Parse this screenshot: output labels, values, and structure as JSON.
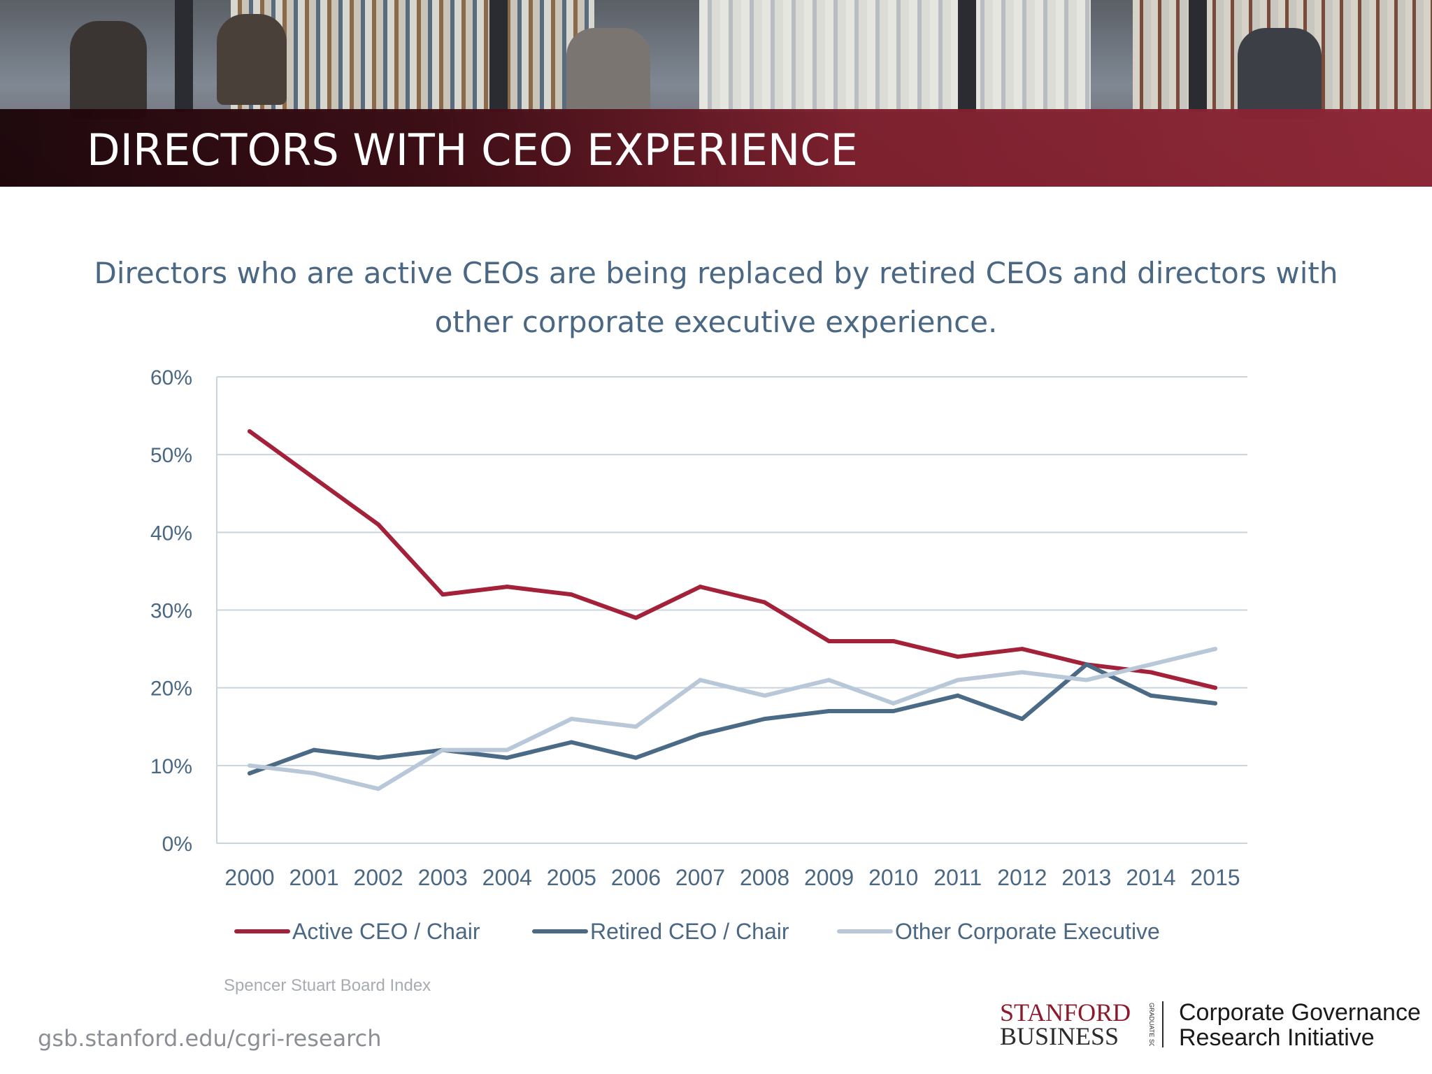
{
  "header": {
    "title": "DIRECTORS WITH CEO EXPERIENCE"
  },
  "subtitle": {
    "line1": "Directors who are active CEOs are being replaced by retired CEOs and directors with",
    "line2": "other corporate executive experience."
  },
  "chart_data": {
    "type": "line",
    "title": "",
    "xlabel": "",
    "ylabel": "",
    "categories": [
      "2000",
      "2001",
      "2002",
      "2003",
      "2004",
      "2005",
      "2006",
      "2007",
      "2008",
      "2009",
      "2010",
      "2011",
      "2012",
      "2013",
      "2014",
      "2015"
    ],
    "ylim": [
      0,
      60
    ],
    "yticks": [
      0,
      10,
      20,
      30,
      40,
      50,
      60
    ],
    "ytick_labels": [
      "0%",
      "10%",
      "20%",
      "30%",
      "40%",
      "50%",
      "60%"
    ],
    "grid": true,
    "legend_position": "bottom",
    "series": [
      {
        "name": "Active CEO /  Chair",
        "color": "#a3223a",
        "values": [
          53,
          47,
          41,
          32,
          33,
          32,
          29,
          33,
          31,
          26,
          26,
          24,
          25,
          23,
          22,
          20
        ]
      },
      {
        "name": "Retired CEO / Chair",
        "color": "#4b6a86",
        "values": [
          9,
          12,
          11,
          12,
          11,
          13,
          11,
          14,
          16,
          17,
          17,
          19,
          16,
          23,
          19,
          18
        ]
      },
      {
        "name": "Other Corporate Executive",
        "color": "#b8c8d8",
        "values": [
          10,
          9,
          7,
          12,
          12,
          16,
          15,
          21,
          19,
          21,
          18,
          21,
          22,
          21,
          23,
          25
        ]
      }
    ]
  },
  "footer": {
    "source": "Spencer Stuart Board Index",
    "url": "gsb.stanford.edu/cgri-research"
  },
  "logo": {
    "stanford": "STANFORD",
    "business": "BUSINESS",
    "gsb_vertical": "GRADUATE SCHOOL OF",
    "cgri_line1": "Corporate Governance",
    "cgri_line2": "Research Initiative"
  }
}
